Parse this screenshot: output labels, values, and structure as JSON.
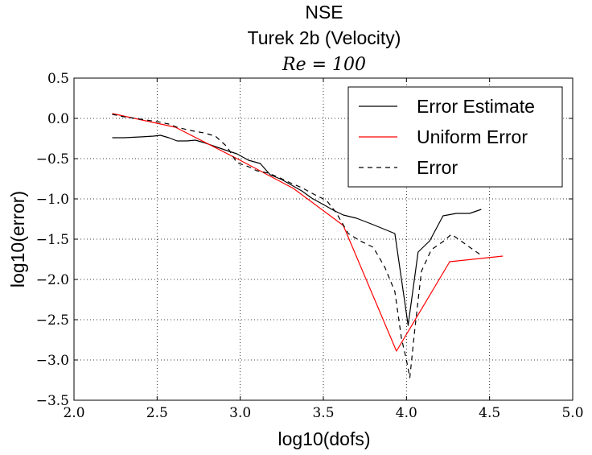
{
  "chart_data": {
    "type": "line",
    "title": "NSE",
    "subtitle": "Turek 2b (Velocity)",
    "annotation": "Re = 100",
    "xlabel": "log10(dofs)",
    "ylabel": "log10(error)",
    "xlim": [
      2.0,
      5.0
    ],
    "ylim": [
      -3.5,
      0.5
    ],
    "xticks": [
      2.0,
      2.5,
      3.0,
      3.5,
      4.0,
      4.5,
      5.0
    ],
    "xtick_labels": [
      "2.0",
      "2.5",
      "3.0",
      "3.5",
      "4.0",
      "4.5",
      "5.0"
    ],
    "yticks": [
      0.5,
      0.0,
      -0.5,
      -1.0,
      -1.5,
      -2.0,
      -2.5,
      -3.0,
      -3.5
    ],
    "ytick_labels": [
      "0.5",
      "0.0",
      "−0.5",
      "−1.0",
      "−1.5",
      "−2.0",
      "−2.5",
      "−3.0",
      "−3.5"
    ],
    "grid": true,
    "legend_position": "top-right",
    "series": [
      {
        "name": "Error Estimate",
        "color": "#000000",
        "dash": "solid",
        "x": [
          2.23,
          2.3,
          2.4,
          2.48,
          2.52,
          2.57,
          2.62,
          2.68,
          2.73,
          2.78,
          2.85,
          2.92,
          2.98,
          3.05,
          3.12,
          3.18,
          3.25,
          3.31,
          3.37,
          3.43,
          3.5,
          3.56,
          3.62,
          3.7,
          3.8,
          3.93,
          4.01,
          4.07,
          4.14,
          4.22,
          4.3,
          4.38,
          4.45
        ],
        "y": [
          -0.24,
          -0.24,
          -0.23,
          -0.22,
          -0.21,
          -0.24,
          -0.28,
          -0.28,
          -0.27,
          -0.3,
          -0.35,
          -0.4,
          -0.44,
          -0.52,
          -0.56,
          -0.7,
          -0.76,
          -0.83,
          -0.9,
          -0.99,
          -1.07,
          -1.14,
          -1.2,
          -1.24,
          -1.32,
          -1.43,
          -2.57,
          -1.66,
          -1.52,
          -1.21,
          -1.18,
          -1.18,
          -1.13
        ]
      },
      {
        "name": "Uniform Error",
        "color": "#ff0000",
        "dash": "solid",
        "x": [
          2.23,
          2.61,
          2.99,
          3.32,
          3.62,
          3.94,
          4.26,
          4.58
        ],
        "y": [
          0.06,
          -0.11,
          -0.51,
          -0.87,
          -1.33,
          -2.89,
          -1.78,
          -1.71
        ]
      },
      {
        "name": "Error",
        "color": "#000000",
        "dash": "dashed",
        "x": [
          2.23,
          2.3,
          2.4,
          2.5,
          2.57,
          2.62,
          2.7,
          2.78,
          2.85,
          2.92,
          2.98,
          3.05,
          3.1,
          3.17,
          3.25,
          3.3,
          3.37,
          3.45,
          3.52,
          3.58,
          3.65,
          3.72,
          3.8,
          3.87,
          3.93,
          3.97,
          4.0,
          4.02,
          4.05,
          4.09,
          4.15,
          4.22,
          4.27,
          4.32,
          4.38,
          4.45
        ],
        "y": [
          0.05,
          0.02,
          -0.01,
          -0.04,
          -0.07,
          -0.11,
          -0.15,
          -0.18,
          -0.22,
          -0.35,
          -0.55,
          -0.6,
          -0.65,
          -0.68,
          -0.75,
          -0.8,
          -0.86,
          -0.95,
          -1.02,
          -1.18,
          -1.43,
          -1.52,
          -1.6,
          -1.85,
          -2.15,
          -2.73,
          -3.0,
          -3.22,
          -2.62,
          -1.9,
          -1.63,
          -1.53,
          -1.44,
          -1.51,
          -1.6,
          -1.7
        ]
      }
    ]
  }
}
